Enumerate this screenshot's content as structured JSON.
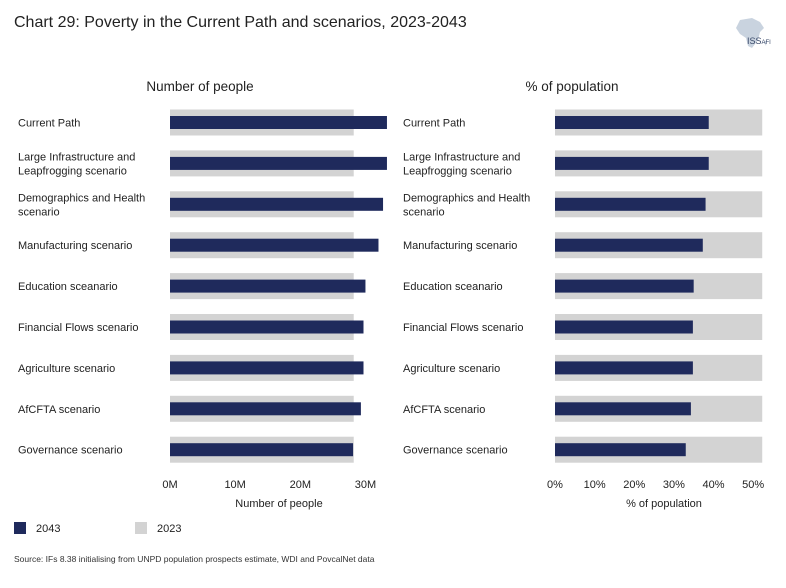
{
  "title": "Chart 29: Poverty in the Current Path and scenarios, 2023-2043",
  "logo": {
    "text": "ISS",
    "sub": "AFI"
  },
  "legend": [
    {
      "label": "2043",
      "color": "#1f2a5c"
    },
    {
      "label": "2023",
      "color": "#d3d3d3"
    }
  ],
  "source": "Source: IFs 8.38 initialising from UNPD population prospects estimate, WDI and PovcalNet data",
  "chart_data": [
    {
      "type": "bar",
      "orientation": "horizontal",
      "title": "Number of people",
      "xlabel": "Number of people",
      "xlim": [
        0,
        33
      ],
      "xticks": [
        0,
        10,
        20,
        30
      ],
      "xtick_labels": [
        "0M",
        "10M",
        "20M",
        "30M"
      ],
      "unit": "M",
      "categories": [
        "Current Path",
        "Large Infrastructure and Leapfrogging scenario",
        "Demographics and Health scenario",
        "Manufacturing scenario",
        "Education sceanario",
        "Financial Flows scenario",
        "Agriculture scenario",
        "AfCFTA scenario",
        "Governance scenario"
      ],
      "series": [
        {
          "name": "2023",
          "values": [
            28.2,
            28.2,
            28.2,
            28.2,
            28.2,
            28.2,
            28.2,
            28.2,
            28.2
          ]
        },
        {
          "name": "2043",
          "values": [
            33.3,
            33.3,
            32.7,
            32.0,
            30.0,
            29.7,
            29.7,
            29.3,
            28.1
          ]
        }
      ]
    },
    {
      "type": "bar",
      "orientation": "horizontal",
      "title": "% of population",
      "xlabel": "% of population",
      "xlim": [
        0,
        53
      ],
      "xticks": [
        0,
        10,
        20,
        30,
        40,
        50
      ],
      "xtick_labels": [
        "0%",
        "10%",
        "20%",
        "30%",
        "40%",
        "50%"
      ],
      "unit": "%",
      "categories": [
        "Current Path",
        "Large Infrastructure and Leapfrogging scenario",
        "Demographics and Health scenario",
        "Manufacturing scenario",
        "Education sceanario",
        "Financial Flows scenario",
        "Agriculture scenario",
        "AfCFTA scenario",
        "Governance scenario"
      ],
      "series": [
        {
          "name": "2023",
          "values": [
            52.3,
            52.3,
            52.3,
            52.3,
            52.3,
            52.3,
            52.3,
            52.3,
            52.3
          ]
        },
        {
          "name": "2043",
          "values": [
            38.8,
            38.8,
            38.0,
            37.3,
            35.0,
            34.8,
            34.8,
            34.3,
            33.0
          ]
        }
      ]
    }
  ]
}
